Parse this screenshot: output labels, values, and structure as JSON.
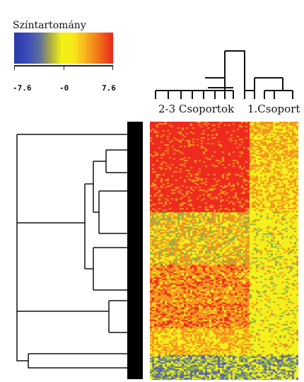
{
  "legend": {
    "title": "Színtartomány",
    "ticks": [
      "-7.6",
      "-0",
      "7.6"
    ],
    "colors": [
      "#2a3aa8",
      "#f2f214",
      "#e8281e"
    ]
  },
  "groups": {
    "left_label": "2-3  Csoportok",
    "right_label": "1.Csoport"
  },
  "heatmap": {
    "colors": {
      "red": "#ee2a1f",
      "orange": "#f5951e",
      "yellow": "#f4f01c",
      "green": "#8fb04a",
      "blue": "#5a66a8"
    }
  }
}
